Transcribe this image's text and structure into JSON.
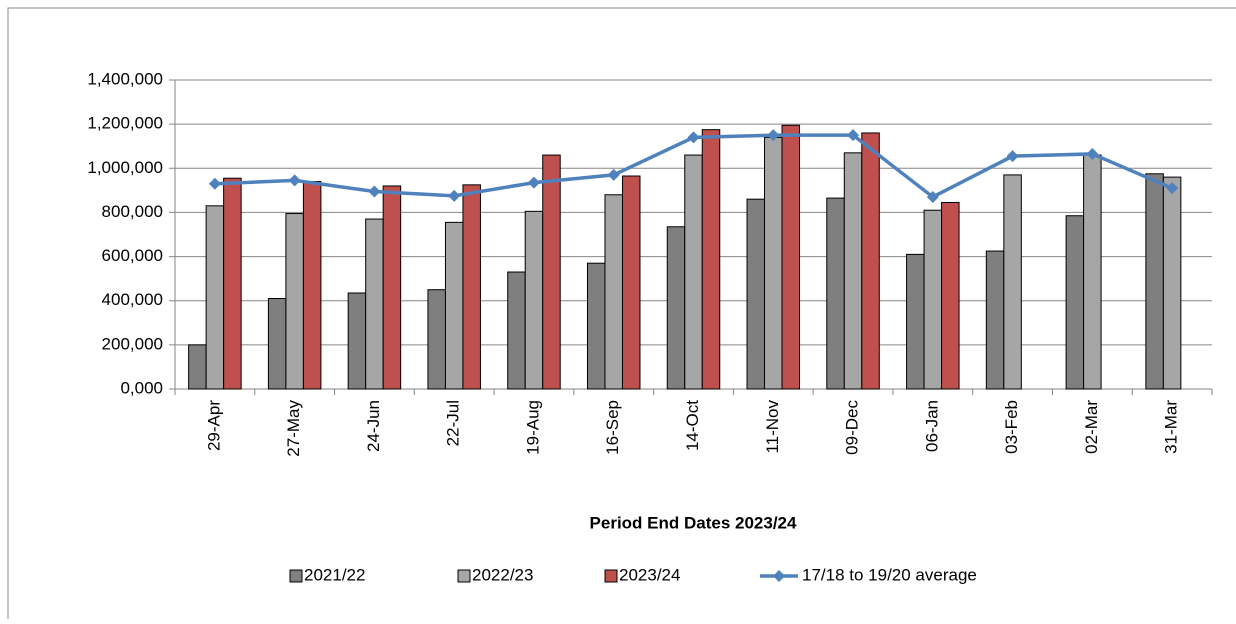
{
  "chart_data": {
    "type": "bar",
    "x_label": "Period End Dates 2023/24",
    "categories": [
      "29-Apr",
      "27-May",
      "24-Jun",
      "22-Jul",
      "19-Aug",
      "16-Sep",
      "14-Oct",
      "11-Nov",
      "09-Dec",
      "06-Jan",
      "03-Feb",
      "02-Mar",
      "31-Mar"
    ],
    "series": [
      {
        "name": "2021/22",
        "type": "bar",
        "color": "#7f7f7f",
        "values": [
          200000,
          410000,
          435000,
          450000,
          530000,
          570000,
          735000,
          860000,
          865000,
          610000,
          625000,
          785000,
          975000
        ]
      },
      {
        "name": "2022/23",
        "type": "bar",
        "color": "#a6a6a6",
        "values": [
          830000,
          795000,
          770000,
          755000,
          805000,
          880000,
          1060000,
          1140000,
          1070000,
          810000,
          970000,
          1060000,
          960000
        ]
      },
      {
        "name": "2023/24",
        "type": "bar",
        "color": "#c0504d",
        "values": [
          955000,
          940000,
          920000,
          925000,
          1060000,
          965000,
          1175000,
          1195000,
          1160000,
          845000,
          null,
          null,
          null
        ]
      },
      {
        "name": "17/18 to 19/20 average",
        "type": "line",
        "color": "#4f81bd",
        "values": [
          930000,
          945000,
          895000,
          875000,
          935000,
          970000,
          1140000,
          1150000,
          1150000,
          870000,
          1055000,
          1065000,
          910000
        ]
      }
    ],
    "ylim": [
      0,
      1400000
    ],
    "yticks": [
      {
        "value": 0,
        "label": "0,000"
      },
      {
        "value": 200000,
        "label": "200,000"
      },
      {
        "value": 400000,
        "label": "400,000"
      },
      {
        "value": 600000,
        "label": "600,000"
      },
      {
        "value": 800000,
        "label": "800,000"
      },
      {
        "value": 1000000,
        "label": "1,000,000"
      },
      {
        "value": 1200000,
        "label": "1,200,000"
      },
      {
        "value": 1400000,
        "label": "1,400,000"
      }
    ],
    "grid": true,
    "legend": "bottom"
  }
}
